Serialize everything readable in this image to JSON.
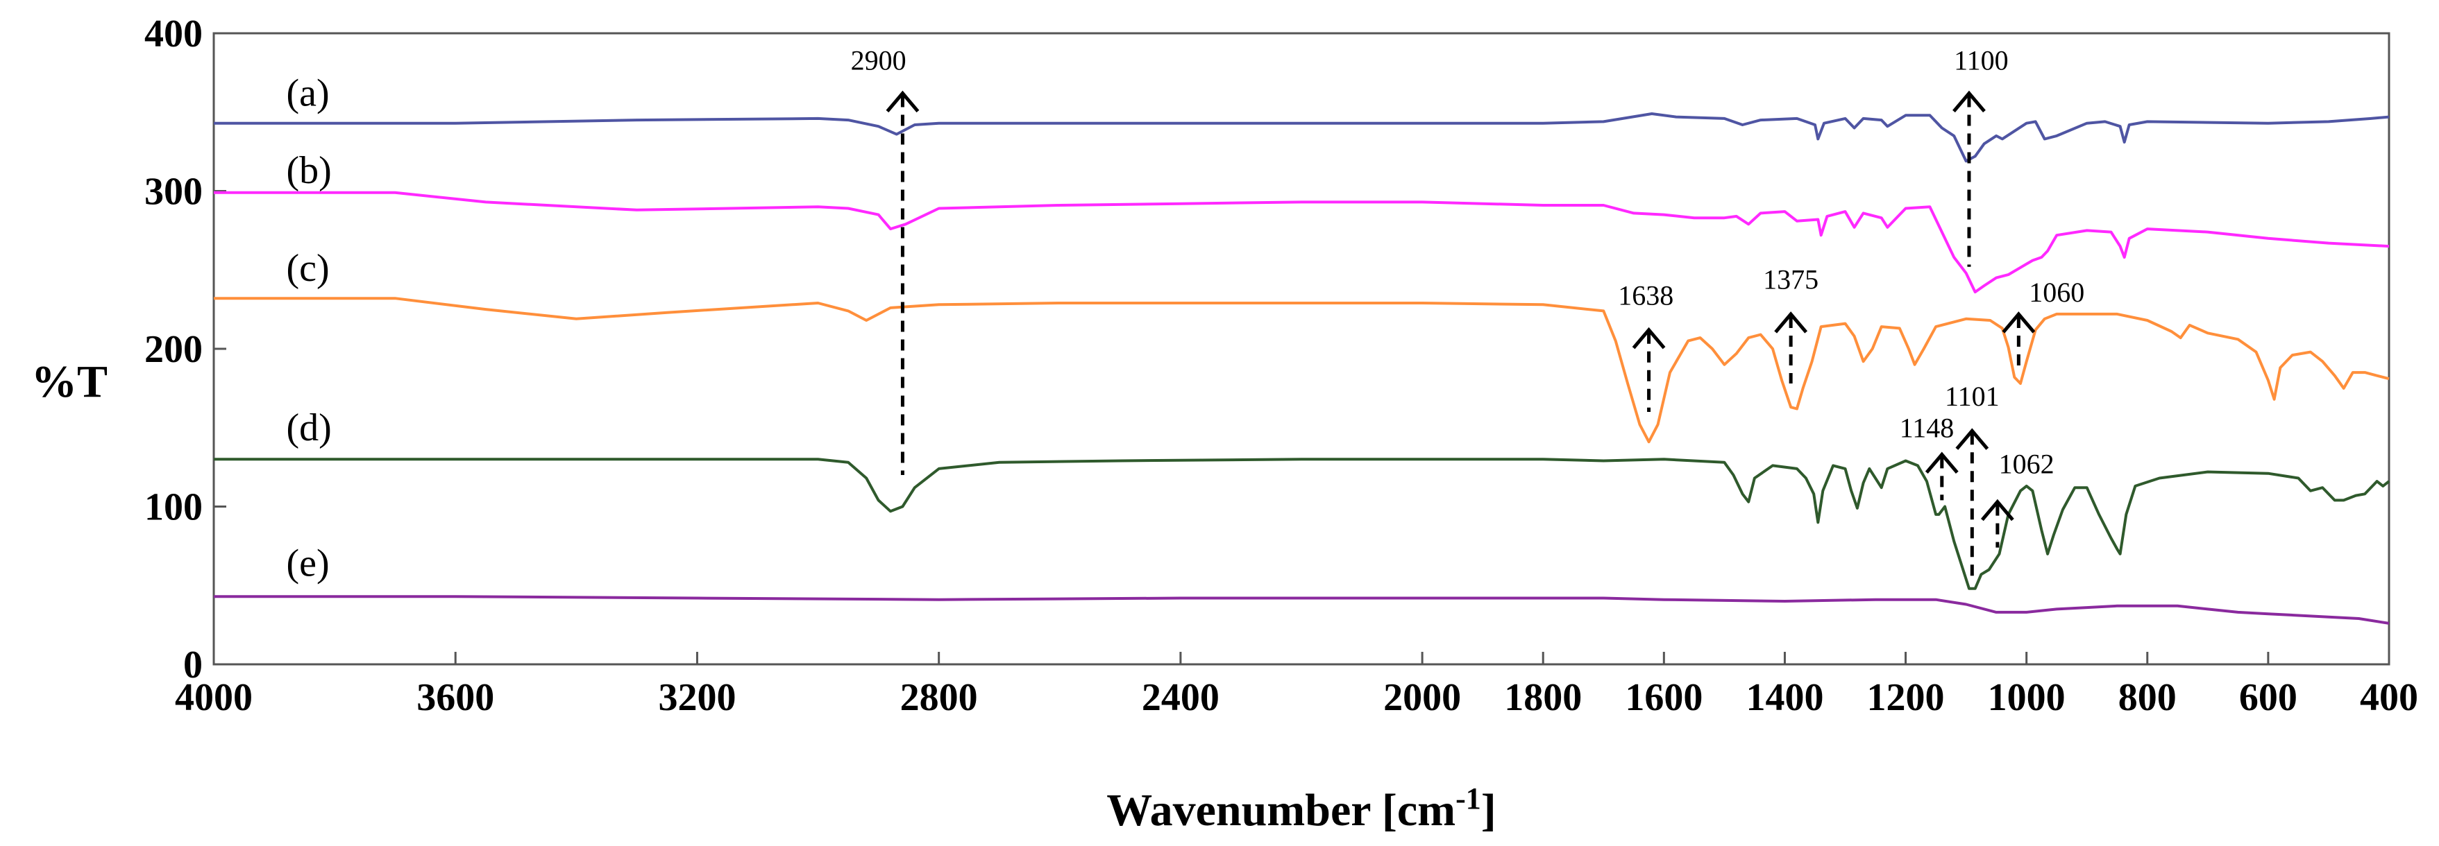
{
  "chart_data": {
    "type": "line",
    "title": "",
    "xlabel": "Wavenumber [cm",
    "xlabel_sup": "-1",
    "xlabel_close": "]",
    "ylabel": "%T",
    "xlim": [
      4000,
      400
    ],
    "ylim": [
      0,
      400
    ],
    "xticks": [
      4000,
      3600,
      3200,
      2800,
      2400,
      2000,
      1800,
      1600,
      1400,
      1200,
      1000,
      800,
      600,
      400
    ],
    "yticks": [
      0,
      100,
      200,
      300,
      400
    ],
    "series": [
      {
        "name": "(a)",
        "label_at": [
          3880,
          362
        ],
        "color": "#4f55a3",
        "points": [
          [
            4000,
            343
          ],
          [
            3600,
            343
          ],
          [
            3300,
            345
          ],
          [
            3000,
            346
          ],
          [
            2950,
            345
          ],
          [
            2900,
            341
          ],
          [
            2870,
            336
          ],
          [
            2840,
            342
          ],
          [
            2800,
            343
          ],
          [
            2400,
            343
          ],
          [
            2000,
            343
          ],
          [
            1800,
            343
          ],
          [
            1700,
            344
          ],
          [
            1620,
            349
          ],
          [
            1580,
            347
          ],
          [
            1500,
            346
          ],
          [
            1470,
            342
          ],
          [
            1440,
            345
          ],
          [
            1380,
            346
          ],
          [
            1350,
            342
          ],
          [
            1345,
            333
          ],
          [
            1335,
            343
          ],
          [
            1300,
            346
          ],
          [
            1285,
            340
          ],
          [
            1270,
            346
          ],
          [
            1240,
            345
          ],
          [
            1230,
            341
          ],
          [
            1200,
            348
          ],
          [
            1160,
            348
          ],
          [
            1140,
            340
          ],
          [
            1120,
            335
          ],
          [
            1100,
            319
          ],
          [
            1085,
            322
          ],
          [
            1070,
            330
          ],
          [
            1050,
            335
          ],
          [
            1040,
            333
          ],
          [
            1000,
            343
          ],
          [
            985,
            344
          ],
          [
            970,
            333
          ],
          [
            950,
            335
          ],
          [
            900,
            343
          ],
          [
            870,
            344
          ],
          [
            845,
            341
          ],
          [
            838,
            331
          ],
          [
            830,
            342
          ],
          [
            800,
            344
          ],
          [
            600,
            343
          ],
          [
            500,
            344
          ],
          [
            430,
            346
          ],
          [
            400,
            347
          ]
        ]
      },
      {
        "name": "(b)",
        "label_at": [
          3880,
          313
        ],
        "color": "#ff29ff",
        "points": [
          [
            4000,
            299
          ],
          [
            3700,
            299
          ],
          [
            3550,
            293
          ],
          [
            3300,
            288
          ],
          [
            3000,
            290
          ],
          [
            2950,
            289
          ],
          [
            2900,
            285
          ],
          [
            2880,
            276
          ],
          [
            2855,
            279
          ],
          [
            2800,
            289
          ],
          [
            2600,
            291
          ],
          [
            2400,
            292
          ],
          [
            2200,
            293
          ],
          [
            2000,
            293
          ],
          [
            1800,
            291
          ],
          [
            1700,
            291
          ],
          [
            1650,
            286
          ],
          [
            1600,
            285
          ],
          [
            1550,
            283
          ],
          [
            1500,
            283
          ],
          [
            1480,
            284
          ],
          [
            1460,
            279
          ],
          [
            1440,
            286
          ],
          [
            1400,
            287
          ],
          [
            1380,
            281
          ],
          [
            1345,
            282
          ],
          [
            1340,
            272
          ],
          [
            1330,
            284
          ],
          [
            1300,
            287
          ],
          [
            1285,
            277
          ],
          [
            1270,
            286
          ],
          [
            1240,
            283
          ],
          [
            1230,
            277
          ],
          [
            1200,
            289
          ],
          [
            1160,
            290
          ],
          [
            1140,
            274
          ],
          [
            1120,
            258
          ],
          [
            1100,
            248
          ],
          [
            1085,
            236
          ],
          [
            1070,
            240
          ],
          [
            1050,
            245
          ],
          [
            1030,
            247
          ],
          [
            990,
            256
          ],
          [
            975,
            258
          ],
          [
            965,
            262
          ],
          [
            950,
            272
          ],
          [
            900,
            275
          ],
          [
            860,
            274
          ],
          [
            845,
            265
          ],
          [
            838,
            258
          ],
          [
            830,
            270
          ],
          [
            800,
            276
          ],
          [
            700,
            274
          ],
          [
            600,
            270
          ],
          [
            500,
            267
          ],
          [
            400,
            265
          ]
        ]
      },
      {
        "name": "(c)",
        "label_at": [
          3880,
          251
        ],
        "color": "#ff8f3b",
        "points": [
          [
            4000,
            232
          ],
          [
            3700,
            232
          ],
          [
            3550,
            225
          ],
          [
            3400,
            219
          ],
          [
            3250,
            223
          ],
          [
            3000,
            229
          ],
          [
            2950,
            224
          ],
          [
            2920,
            218
          ],
          [
            2880,
            226
          ],
          [
            2800,
            228
          ],
          [
            2600,
            229
          ],
          [
            2400,
            229
          ],
          [
            2000,
            229
          ],
          [
            1800,
            228
          ],
          [
            1700,
            224
          ],
          [
            1680,
            205
          ],
          [
            1660,
            178
          ],
          [
            1640,
            152
          ],
          [
            1625,
            141
          ],
          [
            1610,
            152
          ],
          [
            1590,
            185
          ],
          [
            1560,
            205
          ],
          [
            1540,
            207
          ],
          [
            1520,
            200
          ],
          [
            1500,
            190
          ],
          [
            1480,
            197
          ],
          [
            1460,
            207
          ],
          [
            1440,
            209
          ],
          [
            1420,
            200
          ],
          [
            1405,
            180
          ],
          [
            1390,
            163
          ],
          [
            1380,
            162
          ],
          [
            1370,
            175
          ],
          [
            1355,
            192
          ],
          [
            1340,
            214
          ],
          [
            1300,
            216
          ],
          [
            1285,
            208
          ],
          [
            1270,
            192
          ],
          [
            1255,
            200
          ],
          [
            1240,
            214
          ],
          [
            1210,
            213
          ],
          [
            1195,
            200
          ],
          [
            1185,
            190
          ],
          [
            1170,
            200
          ],
          [
            1150,
            214
          ],
          [
            1100,
            219
          ],
          [
            1060,
            218
          ],
          [
            1040,
            213
          ],
          [
            1030,
            201
          ],
          [
            1020,
            182
          ],
          [
            1010,
            178
          ],
          [
            1000,
            192
          ],
          [
            985,
            212
          ],
          [
            970,
            219
          ],
          [
            950,
            222
          ],
          [
            900,
            222
          ],
          [
            850,
            222
          ],
          [
            800,
            218
          ],
          [
            760,
            211
          ],
          [
            745,
            207
          ],
          [
            730,
            215
          ],
          [
            700,
            210
          ],
          [
            650,
            206
          ],
          [
            620,
            198
          ],
          [
            600,
            180
          ],
          [
            590,
            168
          ],
          [
            580,
            188
          ],
          [
            560,
            196
          ],
          [
            530,
            198
          ],
          [
            510,
            192
          ],
          [
            490,
            183
          ],
          [
            475,
            175
          ],
          [
            460,
            185
          ],
          [
            440,
            185
          ],
          [
            420,
            183
          ],
          [
            400,
            181
          ]
        ]
      },
      {
        "name": "(d)",
        "label_at": [
          3880,
          150
        ],
        "color": "#2f5a2c",
        "points": [
          [
            4000,
            130
          ],
          [
            3600,
            130
          ],
          [
            3200,
            130
          ],
          [
            3000,
            130
          ],
          [
            2950,
            128
          ],
          [
            2920,
            118
          ],
          [
            2900,
            104
          ],
          [
            2880,
            97
          ],
          [
            2860,
            100
          ],
          [
            2840,
            112
          ],
          [
            2800,
            124
          ],
          [
            2700,
            128
          ],
          [
            2500,
            129
          ],
          [
            2200,
            130
          ],
          [
            2000,
            130
          ],
          [
            1800,
            130
          ],
          [
            1700,
            129
          ],
          [
            1600,
            130
          ],
          [
            1500,
            128
          ],
          [
            1485,
            120
          ],
          [
            1470,
            108
          ],
          [
            1460,
            103
          ],
          [
            1450,
            118
          ],
          [
            1420,
            126
          ],
          [
            1380,
            124
          ],
          [
            1365,
            118
          ],
          [
            1352,
            108
          ],
          [
            1345,
            90
          ],
          [
            1337,
            110
          ],
          [
            1320,
            126
          ],
          [
            1300,
            124
          ],
          [
            1290,
            110
          ],
          [
            1280,
            99
          ],
          [
            1270,
            115
          ],
          [
            1260,
            124
          ],
          [
            1250,
            118
          ],
          [
            1240,
            112
          ],
          [
            1230,
            124
          ],
          [
            1200,
            129
          ],
          [
            1180,
            126
          ],
          [
            1165,
            116
          ],
          [
            1150,
            95
          ],
          [
            1145,
            95
          ],
          [
            1135,
            100
          ],
          [
            1120,
            78
          ],
          [
            1105,
            60
          ],
          [
            1095,
            48
          ],
          [
            1085,
            48
          ],
          [
            1075,
            57
          ],
          [
            1062,
            60
          ],
          [
            1045,
            70
          ],
          [
            1030,
            95
          ],
          [
            1010,
            110
          ],
          [
            1000,
            113
          ],
          [
            990,
            110
          ],
          [
            975,
            85
          ],
          [
            965,
            70
          ],
          [
            955,
            82
          ],
          [
            940,
            98
          ],
          [
            920,
            112
          ],
          [
            900,
            112
          ],
          [
            880,
            95
          ],
          [
            860,
            80
          ],
          [
            850,
            73
          ],
          [
            845,
            70
          ],
          [
            835,
            95
          ],
          [
            820,
            113
          ],
          [
            780,
            118
          ],
          [
            700,
            122
          ],
          [
            600,
            121
          ],
          [
            550,
            118
          ],
          [
            530,
            110
          ],
          [
            510,
            112
          ],
          [
            490,
            104
          ],
          [
            475,
            104
          ],
          [
            455,
            107
          ],
          [
            440,
            108
          ],
          [
            420,
            116
          ],
          [
            410,
            113
          ],
          [
            400,
            116
          ]
        ]
      },
      {
        "name": "(e)",
        "label_at": [
          3880,
          64
        ],
        "color": "#8a2a9e",
        "points": [
          [
            4000,
            43
          ],
          [
            3600,
            43
          ],
          [
            3200,
            42
          ],
          [
            2800,
            41
          ],
          [
            2400,
            42
          ],
          [
            2000,
            42
          ],
          [
            1800,
            42
          ],
          [
            1700,
            42
          ],
          [
            1600,
            41
          ],
          [
            1400,
            40
          ],
          [
            1250,
            41
          ],
          [
            1150,
            41
          ],
          [
            1100,
            38
          ],
          [
            1050,
            33
          ],
          [
            1000,
            33
          ],
          [
            950,
            35
          ],
          [
            900,
            36
          ],
          [
            850,
            37
          ],
          [
            800,
            37
          ],
          [
            750,
            37
          ],
          [
            700,
            35
          ],
          [
            650,
            33
          ],
          [
            600,
            32
          ],
          [
            500,
            30
          ],
          [
            450,
            29
          ],
          [
            400,
            26
          ]
        ]
      }
    ],
    "annotations": [
      {
        "label": "2900",
        "x": 2860,
        "y_top": 362,
        "y_bottom": 120,
        "label_x": 2900,
        "label_y": 377
      },
      {
        "label": "1100",
        "x": 1095,
        "y_top": 362,
        "y_bottom": 252,
        "label_x": 1075,
        "label_y": 377
      },
      {
        "label": "1638",
        "x": 1625,
        "y_top": 212,
        "y_bottom": 160,
        "label_x": 1630,
        "label_y": 228
      },
      {
        "label": "1375",
        "x": 1390,
        "y_top": 222,
        "y_bottom": 178,
        "label_x": 1390,
        "label_y": 238
      },
      {
        "label": "1060",
        "x": 1013,
        "y_top": 222,
        "y_bottom": 188,
        "label_x": 950,
        "label_y": 230
      },
      {
        "label": "1148",
        "x": 1140,
        "y_top": 133,
        "y_bottom": 104,
        "label_x": 1165,
        "label_y": 144
      },
      {
        "label": "1101",
        "x": 1090,
        "y_top": 148,
        "y_bottom": 55,
        "label_x": 1090,
        "label_y": 164
      },
      {
        "label": "1062",
        "x": 1048,
        "y_top": 103,
        "y_bottom": 74,
        "label_x": 1000,
        "label_y": 121
      }
    ]
  }
}
